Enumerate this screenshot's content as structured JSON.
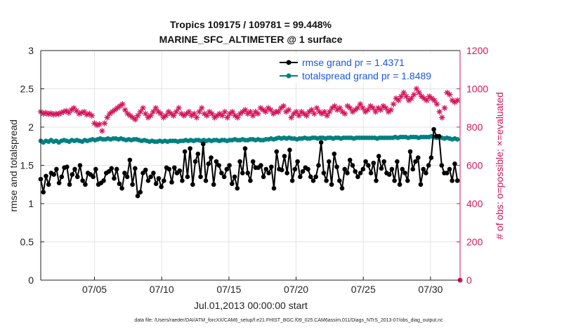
{
  "chart_data": {
    "type": "line",
    "title_line1": "Tropics 109175 / 109781 = 99.448%",
    "title_line2": "MARINE_SFC_ALTIMETER @ 1 surface",
    "xlabel": "Jul.01,2013 00:00:00 start",
    "ylabel_left": "rmse and totalspread",
    "ylabel_right": "# of obs: o=possible; ×=evaluated",
    "xlim": [
      1,
      32.2
    ],
    "ylim_left": [
      0,
      3
    ],
    "ylim_right": [
      0,
      1200
    ],
    "x_ticks": [
      5,
      10,
      15,
      20,
      25,
      30
    ],
    "x_tick_labels": [
      "07/05",
      "07/10",
      "07/15",
      "07/20",
      "07/25",
      "07/30"
    ],
    "y_ticks_left": [
      "0",
      "0.5",
      "1",
      "1.5",
      "2",
      "2.5",
      "3"
    ],
    "y_ticks_right": [
      "0",
      "200",
      "400",
      "600",
      "800",
      "1000",
      "1200"
    ],
    "footnote": "data file: /Users/raeder/DAI/ATM_forcXX/CAM6_setup/f.e21.FHIST_BGC.f09_025.CAM6assim.011/Diags_NTrS_2013-07/obs_diag_output.nc",
    "legend": [
      {
        "name": "rmse grand pr = 1.4371",
        "color": "#000000"
      },
      {
        "name": "totalspread grand pr = 1.8489",
        "color": "#008080"
      }
    ],
    "series": [
      {
        "name": "rmse",
        "axis": "left",
        "color": "#000000",
        "marker": "dot",
        "values": [
          1.32,
          1.15,
          1.36,
          1.25,
          1.4,
          1.38,
          1.45,
          1.27,
          1.35,
          1.47,
          1.48,
          1.25,
          1.38,
          1.45,
          1.35,
          1.5,
          1.3,
          1.25,
          1.4,
          1.38,
          1.35,
          1.45,
          1.25,
          1.27,
          1.3,
          1.4,
          1.42,
          1.46,
          1.33,
          1.45,
          1.26,
          1.2,
          1.4,
          1.35,
          1.57,
          1.25,
          1.46,
          1.1,
          1.15,
          1.4,
          1.44,
          1.3,
          1.35,
          1.4,
          1.26,
          1.33,
          1.22,
          1.3,
          1.47,
          1.45,
          1.28,
          1.47,
          1.4,
          1.43,
          1.3,
          1.68,
          1.35,
          1.72,
          1.25,
          1.55,
          1.65,
          1.35,
          1.78,
          1.3,
          1.52,
          1.6,
          1.25,
          1.55,
          1.5,
          1.4,
          1.35,
          1.45,
          1.5,
          1.26,
          1.35,
          1.2,
          1.55,
          1.4,
          1.72,
          1.4,
          1.3,
          1.55,
          1.47,
          1.47,
          1.5,
          1.35,
          1.45,
          1.4,
          1.48,
          1.2,
          1.68,
          1.45,
          1.44,
          1.62,
          1.4,
          1.7,
          1.3,
          1.45,
          1.55,
          1.35,
          1.42,
          1.47,
          1.45,
          1.35,
          1.3,
          1.35,
          1.5,
          1.8,
          1.4,
          1.3,
          1.55,
          1.25,
          1.65,
          1.48,
          1.3,
          1.2,
          1.45,
          1.4,
          1.57,
          1.5,
          1.42,
          1.35,
          1.4,
          1.45,
          1.55,
          1.5,
          1.4,
          1.53,
          1.3,
          1.62,
          1.46,
          1.55,
          1.4,
          1.38,
          1.45,
          1.3,
          1.55,
          1.25,
          1.45,
          1.4,
          1.3,
          1.68,
          1.45,
          1.55,
          1.6,
          1.25,
          1.45,
          1.4,
          1.5,
          1.6,
          1.97,
          1.88,
          1.88,
          1.5,
          1.4,
          1.4,
          1.45,
          1.3,
          1.52,
          1.3
        ]
      },
      {
        "name": "totalspread",
        "axis": "left",
        "color": "#008080",
        "marker": "dot",
        "values": [
          1.82,
          1.8,
          1.82,
          1.81,
          1.83,
          1.81,
          1.82,
          1.8,
          1.82,
          1.83,
          1.82,
          1.81,
          1.83,
          1.82,
          1.83,
          1.82,
          1.81,
          1.83,
          1.82,
          1.83,
          1.84,
          1.83,
          1.84,
          1.85,
          1.84,
          1.84,
          1.85,
          1.84,
          1.85,
          1.85,
          1.84,
          1.85,
          1.84,
          1.83,
          1.84,
          1.83,
          1.84,
          1.84,
          1.83,
          1.82,
          1.83,
          1.82,
          1.81,
          1.82,
          1.81,
          1.81,
          1.82,
          1.81,
          1.82,
          1.81,
          1.82,
          1.82,
          1.82,
          1.81,
          1.82,
          1.82,
          1.83,
          1.82,
          1.83,
          1.82,
          1.83,
          1.83,
          1.82,
          1.83,
          1.82,
          1.83,
          1.82,
          1.83,
          1.83,
          1.82,
          1.83,
          1.83,
          1.82,
          1.83,
          1.83,
          1.84,
          1.83,
          1.83,
          1.84,
          1.83,
          1.83,
          1.84,
          1.84,
          1.83,
          1.84,
          1.83,
          1.83,
          1.84,
          1.84,
          1.85,
          1.84,
          1.85,
          1.86,
          1.85,
          1.86,
          1.85,
          1.86,
          1.85,
          1.85,
          1.84,
          1.85,
          1.85,
          1.86,
          1.85,
          1.85,
          1.86,
          1.86,
          1.85,
          1.86,
          1.86,
          1.85,
          1.86,
          1.86,
          1.85,
          1.86,
          1.86,
          1.85,
          1.86,
          1.86,
          1.86,
          1.86,
          1.85,
          1.86,
          1.86,
          1.86,
          1.86,
          1.86,
          1.86,
          1.86,
          1.86,
          1.85,
          1.86,
          1.86,
          1.86,
          1.86,
          1.86,
          1.86,
          1.87,
          1.86,
          1.87,
          1.87,
          1.87,
          1.86,
          1.87,
          1.87,
          1.87,
          1.86,
          1.87,
          1.87,
          1.87,
          1.87,
          1.88,
          1.87,
          1.86,
          1.87,
          1.86,
          1.85,
          1.86,
          1.85,
          1.84,
          1.85,
          1.84
        ]
      },
      {
        "name": "obs possible / evaluated",
        "axis": "right",
        "color": "#d4145a",
        "marker": "asterisk",
        "values": [
          880,
          870,
          875,
          868,
          872,
          865,
          870,
          868,
          875,
          880,
          885,
          875,
          890,
          900,
          885,
          870,
          875,
          880,
          865,
          870,
          860,
          820,
          810,
          815,
          780,
          820,
          850,
          870,
          880,
          890,
          900,
          910,
          920,
          890,
          870,
          860,
          850,
          840,
          860,
          880,
          900,
          870,
          850,
          860,
          880,
          900,
          880,
          870,
          850,
          860,
          880,
          870,
          860,
          880,
          900,
          870,
          860,
          870,
          880,
          860,
          870,
          850,
          880,
          900,
          870,
          860,
          880,
          870,
          850,
          860,
          870,
          860,
          880,
          850,
          870,
          880,
          860,
          850,
          870,
          880,
          890,
          870,
          880,
          860,
          880,
          870,
          900,
          890,
          880,
          900,
          890,
          870,
          880,
          880,
          900,
          910,
          880,
          890,
          850,
          870,
          880,
          860,
          880,
          870,
          860,
          880,
          890,
          870,
          900,
          880,
          870,
          880,
          860,
          880,
          900,
          910,
          890,
          900,
          880,
          870,
          910,
          900,
          880,
          890,
          900,
          920,
          900,
          880,
          890,
          910,
          900,
          880,
          900,
          890,
          910,
          900,
          880,
          890,
          920,
          950,
          940,
          960,
          980,
          960,
          940,
          950,
          970,
          1000,
          980,
          960,
          950,
          940,
          960,
          950,
          940,
          920,
          880,
          850,
          900,
          980,
          970,
          940,
          930,
          940
        ]
      }
    ]
  }
}
